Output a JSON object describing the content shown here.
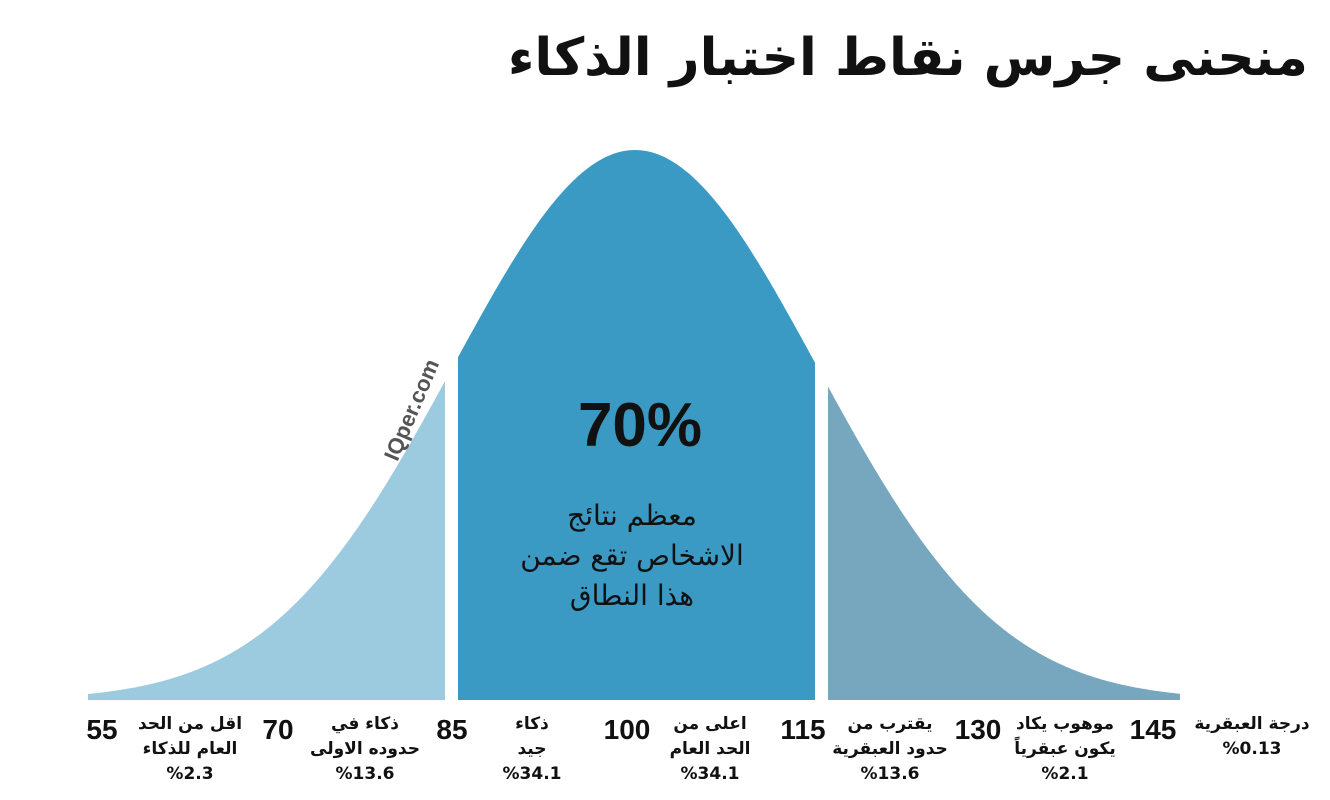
{
  "title": "منحنى جرس نقاط اختبار الذكاء",
  "watermark": "IQper.com",
  "center": {
    "percent": "70%",
    "lines": [
      "معظم نتائج",
      "الاشخاص تقع ضمن",
      "هذا النطاق"
    ]
  },
  "scores": [
    55,
    70,
    85,
    100,
    115,
    130,
    145
  ],
  "descriptions": [
    {
      "lines": [
        "اقل من الحد",
        "العام للذكاء"
      ],
      "percent": "%2.3"
    },
    {
      "lines": [
        "ذكاء في",
        "حدوده الاولى"
      ],
      "percent": "%13.6"
    },
    {
      "lines": [
        "ذكاء",
        "جيد"
      ],
      "percent": "%34.1"
    },
    {
      "lines": [
        "اعلى من",
        "الحد العام"
      ],
      "percent": "%34.1"
    },
    {
      "lines": [
        "يقترب من",
        "حدود العبقرية"
      ],
      "percent": "%13.6"
    },
    {
      "lines": [
        "موهوب يكاد",
        "يكون عبقرياً"
      ],
      "percent": "%2.1"
    },
    {
      "lines": [
        "درجة العبقرية"
      ],
      "percent": "%0.13"
    }
  ]
}
